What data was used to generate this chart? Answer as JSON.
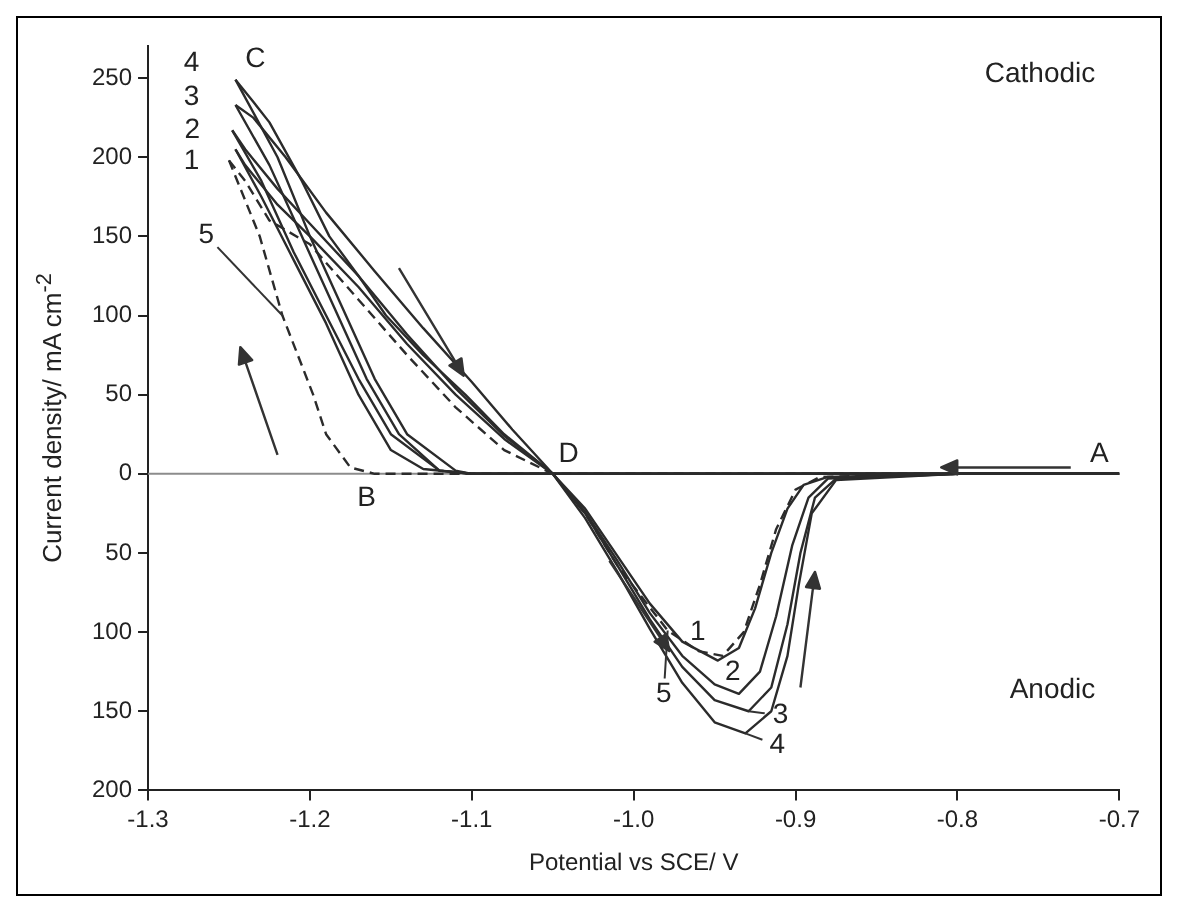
{
  "chart_data": {
    "type": "line",
    "xlabel": "Potential vs SCE/ V",
    "ylabel": "Current density/ mA cm$^{-2}$",
    "xlim": [
      -1.3,
      -0.7
    ],
    "ylim": [
      -200,
      270
    ],
    "xticks": [
      -1.3,
      -1.2,
      -1.1,
      {
        "value": -1.0,
        "label": "-1.0"
      },
      -0.9,
      -0.8,
      -0.7
    ],
    "yticks": [
      {
        "value": -200,
        "label": "200"
      },
      {
        "value": -150,
        "label": "150"
      },
      {
        "value": -100,
        "label": "100"
      },
      {
        "value": -50,
        "label": "50"
      },
      0,
      50,
      100,
      150,
      200,
      250
    ],
    "grid": false,
    "legend": false,
    "marker": "none",
    "ref_lines": [
      {
        "axis": "y",
        "value": 0,
        "color": "#8c8c8c"
      }
    ],
    "series": [
      {
        "color": "#2b2b2b",
        "x": [
          -1.246,
          -1.23,
          -1.21,
          -1.19,
          -1.17,
          -1.15,
          -1.13,
          -1.1,
          -1.0,
          -0.9,
          -0.8,
          -0.7
        ],
        "values": [
          205,
          175,
          135,
          95,
          50,
          15,
          3,
          0,
          0,
          0,
          0,
          0
        ]
      },
      {
        "color": "#2b2b2b",
        "x": [
          -1.246,
          -1.24,
          -1.22,
          -1.2,
          -1.17,
          -1.14,
          -1.11,
          -1.08,
          -1.05,
          -1.03,
          -1.01,
          -0.99,
          -0.97,
          -0.948,
          -0.935,
          -0.925,
          -0.915,
          -0.905,
          -0.895,
          -0.88,
          -0.8,
          -0.7
        ],
        "values": [
          205,
          195,
          170,
          150,
          118,
          82,
          50,
          22,
          0,
          -22,
          -52,
          -82,
          -106,
          -118,
          -110,
          -85,
          -50,
          -22,
          -7,
          -2,
          0,
          0
        ]
      },
      {
        "color": "#2b2b2b",
        "x": [
          -1.248,
          -1.23,
          -1.21,
          -1.19,
          -1.17,
          -1.15,
          -1.12,
          -1.1,
          -1.0,
          -0.9,
          -0.8,
          -0.7
        ],
        "values": [
          217,
          185,
          140,
          100,
          60,
          25,
          2,
          0,
          0,
          0,
          0,
          0
        ]
      },
      {
        "color": "#2b2b2b",
        "x": [
          -1.248,
          -1.24,
          -1.22,
          -1.2,
          -1.17,
          -1.14,
          -1.11,
          -1.08,
          -1.05,
          -1.03,
          -1.01,
          -0.99,
          -0.97,
          -0.95,
          -0.935,
          -0.922,
          -0.912,
          -0.902,
          -0.892,
          -0.88,
          -0.8,
          -0.7
        ],
        "values": [
          217,
          205,
          180,
          158,
          125,
          88,
          54,
          24,
          0,
          -24,
          -55,
          -88,
          -115,
          -133,
          -139,
          -125,
          -90,
          -45,
          -15,
          -3,
          0,
          0
        ]
      },
      {
        "color": "#2b2b2b",
        "x": [
          -1.246,
          -1.225,
          -1.205,
          -1.185,
          -1.165,
          -1.145,
          -1.12,
          -1.1,
          -1.0,
          -0.9,
          -0.8,
          -0.7
        ],
        "values": [
          233,
          195,
          150,
          105,
          60,
          25,
          2,
          0,
          0,
          0,
          0,
          0
        ]
      },
      {
        "color": "#2b2b2b",
        "x": [
          -1.246,
          -1.235,
          -1.215,
          -1.19,
          -1.16,
          -1.13,
          -1.1,
          -1.075,
          -1.05,
          -1.03,
          -1.01,
          -0.99,
          -0.97,
          -0.95,
          -0.929,
          -0.915,
          -0.905,
          -0.897,
          -0.888,
          -0.875,
          -0.8,
          -0.7
        ],
        "values": [
          233,
          225,
          200,
          165,
          128,
          92,
          58,
          28,
          0,
          -25,
          -58,
          -92,
          -122,
          -143,
          -150,
          -135,
          -95,
          -50,
          -15,
          -3,
          0,
          0
        ]
      },
      {
        "color": "#2b2b2b",
        "x": [
          -1.246,
          -1.22,
          -1.2,
          -1.18,
          -1.16,
          -1.14,
          -1.11,
          -1.1,
          -1.0,
          -0.9,
          -0.8,
          -0.7
        ],
        "values": [
          249,
          200,
          150,
          105,
          60,
          25,
          2,
          0,
          0,
          0,
          0,
          0
        ]
      },
      {
        "color": "#2b2b2b",
        "x": [
          -1.246,
          -1.235,
          -1.225,
          -1.205,
          -1.188,
          -1.17,
          -1.153,
          -1.13,
          -1.104,
          -1.08,
          -1.05,
          -1.03,
          -1.01,
          -0.99,
          -0.97,
          -0.95,
          -0.931,
          -0.915,
          -0.905,
          -0.898,
          -0.89,
          -0.875,
          -0.8,
          -0.7
        ],
        "values": [
          249,
          235,
          222,
          185,
          150,
          125,
          100,
          75,
          50,
          25,
          0,
          -28,
          -62,
          -98,
          -132,
          -157,
          -164,
          -150,
          -115,
          -70,
          -25,
          -4,
          0,
          0
        ]
      },
      {
        "color": "#2b2b2b",
        "line_style": "dashed",
        "x": [
          -1.25,
          -1.231,
          -1.217,
          -1.198,
          -1.19,
          -1.175,
          -1.16,
          -1.1,
          -1.0,
          -0.9,
          -0.8,
          -0.7
        ],
        "values": [
          198,
          150,
          100,
          50,
          25,
          4,
          0,
          0,
          0,
          0,
          0,
          0
        ]
      },
      {
        "color": "#2b2b2b",
        "line_style": "dashed",
        "x": [
          -1.25,
          -1.24,
          -1.225,
          -1.2,
          -1.17,
          -1.14,
          -1.11,
          -1.08,
          -1.05,
          -1.03,
          -1.01,
          -0.979,
          -0.96,
          -0.945,
          -0.932,
          -0.922,
          -0.912,
          -0.9,
          -0.885,
          -0.8,
          -0.7
        ],
        "values": [
          198,
          185,
          160,
          145,
          110,
          75,
          42,
          15,
          0,
          -25,
          -58,
          -99,
          -112,
          -115,
          -100,
          -70,
          -35,
          -10,
          -2,
          0,
          0
        ]
      }
    ],
    "annotations": [
      {
        "text": "4",
        "x": -1.246,
        "y": 249
      },
      {
        "text": "3",
        "x": -1.246,
        "y": 233
      },
      {
        "text": "2",
        "x": -1.248,
        "y": 217
      },
      {
        "text": "1",
        "x": -1.246,
        "y": 205
      },
      {
        "text": "5",
        "x": -1.217,
        "y": 100
      },
      {
        "text": "C",
        "x": -1.246,
        "y": 249
      },
      {
        "text": "B",
        "x": -1.165,
        "y": 0
      },
      {
        "text": "D",
        "x": -1.05,
        "y": 0
      },
      {
        "text": "A",
        "x": -0.7,
        "y": 0
      },
      {
        "text": "1",
        "x": -0.948,
        "y": -118
      },
      {
        "text": "2",
        "x": -0.935,
        "y": -139
      },
      {
        "text": "3",
        "x": -0.929,
        "y": -150
      },
      {
        "text": "4",
        "x": -0.931,
        "y": -164
      },
      {
        "text": "5",
        "x": -0.979,
        "y": -99
      },
      "Cathodic",
      "Anodic"
    ]
  }
}
